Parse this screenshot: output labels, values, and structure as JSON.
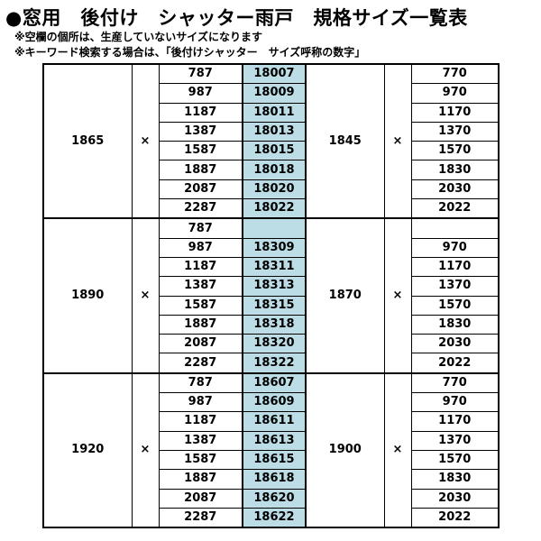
{
  "title": "●窓用　後付け　シャッター雨戸　規格サイズ一覧表",
  "notes": [
    "※空欄の個所は、生産していないサイズになります",
    "※キーワード検索する場合は、「後付けシャッター　サイズ呼称の数字」"
  ],
  "colors": {
    "code_bg": "#bcdde6"
  },
  "times": "×",
  "groups": [
    {
      "height": "1865",
      "other_height": "1845",
      "widths": [
        "787",
        "987",
        "1187",
        "1387",
        "1587",
        "1887",
        "2087",
        "2287"
      ],
      "codes": [
        "18007",
        "18009",
        "18011",
        "18013",
        "18015",
        "18018",
        "18020",
        "18022"
      ],
      "other_widths": [
        "770",
        "970",
        "1170",
        "1370",
        "1570",
        "1830",
        "2030",
        "2022"
      ]
    },
    {
      "height": "1890",
      "other_height": "1870",
      "widths": [
        "787",
        "987",
        "1187",
        "1387",
        "1587",
        "1887",
        "2087",
        "2287"
      ],
      "codes": [
        "",
        "18309",
        "18311",
        "18313",
        "18315",
        "18318",
        "18320",
        "18322"
      ],
      "other_widths": [
        "",
        "970",
        "1170",
        "1370",
        "1570",
        "1830",
        "2030",
        "2022"
      ]
    },
    {
      "height": "1920",
      "other_height": "1900",
      "widths": [
        "787",
        "987",
        "1187",
        "1387",
        "1587",
        "1887",
        "2087",
        "2287"
      ],
      "codes": [
        "18607",
        "18609",
        "18611",
        "18613",
        "18615",
        "18618",
        "18620",
        "18622"
      ],
      "other_widths": [
        "770",
        "970",
        "1170",
        "1370",
        "1570",
        "1830",
        "2030",
        "2022"
      ]
    }
  ]
}
